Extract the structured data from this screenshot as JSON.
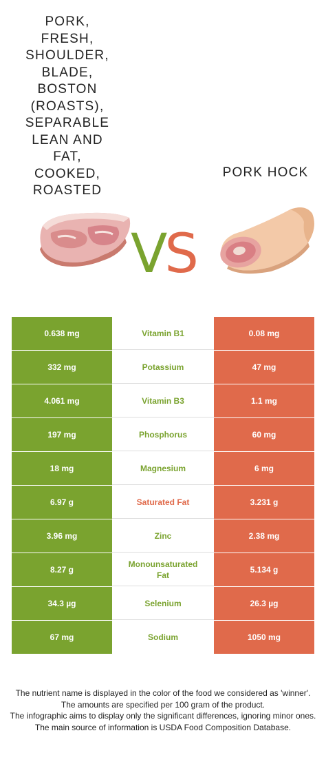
{
  "food_left": {
    "name": "Pork, fresh, shoulder, blade, Boston (roasts), separable lean and fat, cooked, roasted",
    "color": "#7aa32f",
    "icon": "roast-pork-shoulder-icon"
  },
  "food_right": {
    "name": "Pork hock",
    "color": "#e06a4b",
    "icon": "pork-hock-icon"
  },
  "vs": {
    "v": "V",
    "s": "S"
  },
  "nutrients": [
    {
      "left": "0.638 mg",
      "name": "Vitamin B1",
      "right": "0.08 mg",
      "winner": "left"
    },
    {
      "left": "332 mg",
      "name": "Potassium",
      "right": "47 mg",
      "winner": "left"
    },
    {
      "left": "4.061 mg",
      "name": "Vitamin B3",
      "right": "1.1 mg",
      "winner": "left"
    },
    {
      "left": "197 mg",
      "name": "Phosphorus",
      "right": "60 mg",
      "winner": "left"
    },
    {
      "left": "18 mg",
      "name": "Magnesium",
      "right": "6 mg",
      "winner": "left"
    },
    {
      "left": "6.97 g",
      "name": "Saturated Fat",
      "right": "3.231 g",
      "winner": "right"
    },
    {
      "left": "3.96 mg",
      "name": "Zinc",
      "right": "2.38 mg",
      "winner": "left"
    },
    {
      "left": "8.27 g",
      "name": "Monounsaturated Fat",
      "right": "5.134 g",
      "winner": "left"
    },
    {
      "left": "34.3 µg",
      "name": "Selenium",
      "right": "26.3 µg",
      "winner": "left"
    },
    {
      "left": "67 mg",
      "name": "Sodium",
      "right": "1050 mg",
      "winner": "left"
    }
  ],
  "footnote": [
    "The nutrient name is displayed in the color of the food we considered as 'winner'.",
    "The amounts are specified per 100 gram of the product.",
    "The infographic aims to display only the significant differences, ignoring minor ones.",
    "The main source of information is USDA Food Composition Database."
  ]
}
